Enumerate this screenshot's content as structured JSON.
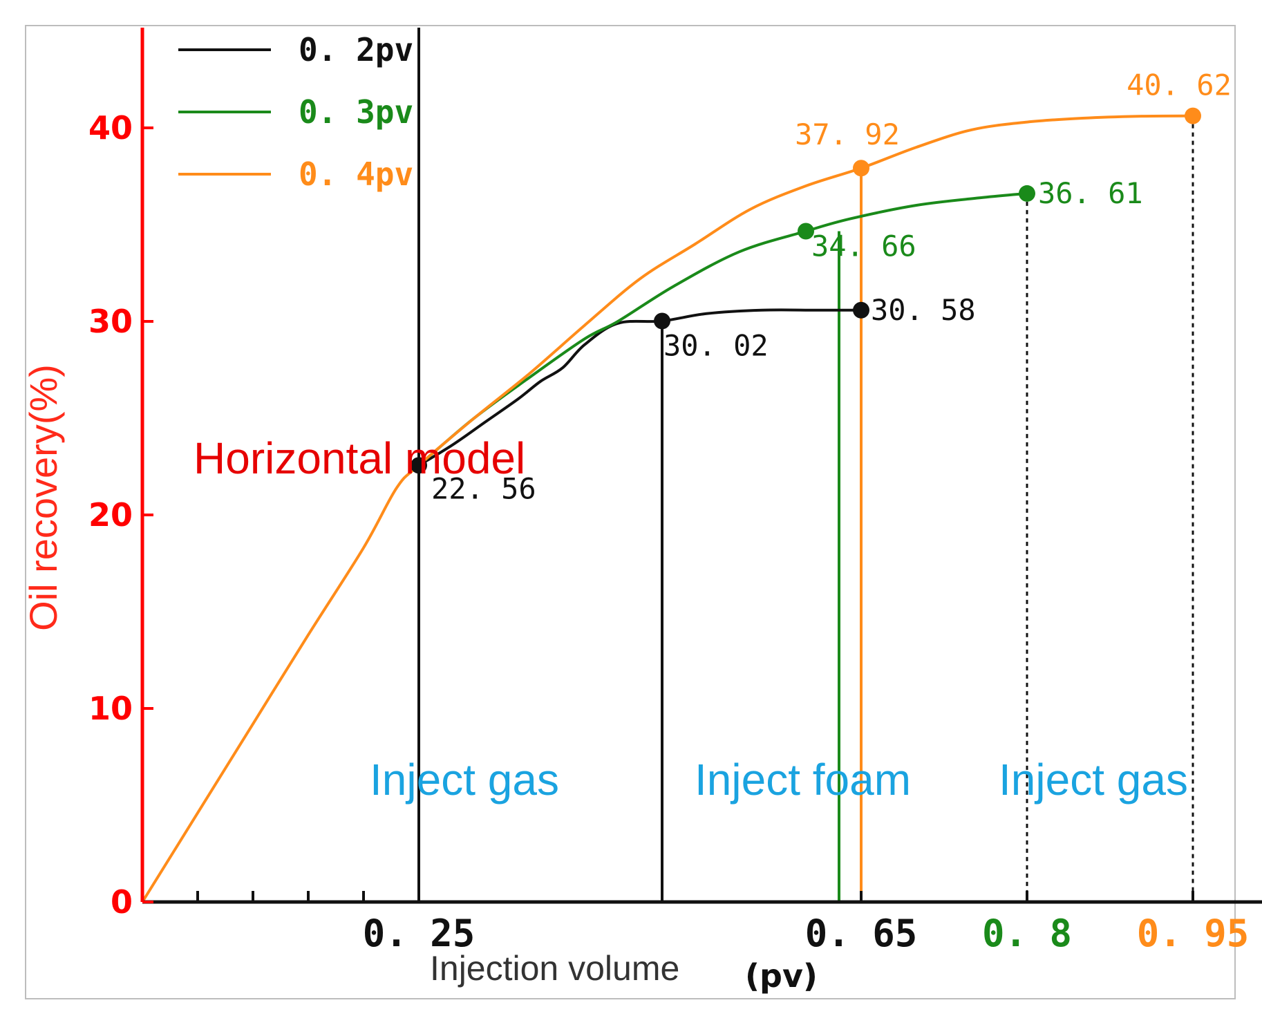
{
  "chart_data": {
    "type": "line",
    "title": "",
    "xlabel": "Injection volume",
    "xunit": "(pv)",
    "ylabel": "Oil recovery(%)",
    "ylim": [
      0,
      45
    ],
    "xlim": [
      0,
      1.04
    ],
    "yticks": [
      "0",
      "10",
      "20",
      "30",
      "40"
    ],
    "yticks_values": [
      0,
      10,
      20,
      30,
      40
    ],
    "xticks_minor": [
      0.05,
      0.1,
      0.15,
      0.2
    ],
    "x_tick_labels": [
      {
        "x": 0.25,
        "label": "0. 25",
        "color": "#111111"
      },
      {
        "x": 0.65,
        "label": "0. 65",
        "color": "#111111"
      },
      {
        "x": 0.8,
        "label": "0. 8",
        "color": "#1a8a1a"
      },
      {
        "x": 0.95,
        "label": "0. 95",
        "color": "#ff8c1a"
      }
    ],
    "model_label": "Horizontal model",
    "regions": [
      "Inject gas",
      "Inject foam",
      "Inject gas"
    ],
    "series": [
      {
        "name": "0. 2pv",
        "color": "#111111",
        "x": [
          0.25,
          0.28,
          0.31,
          0.34,
          0.36,
          0.38,
          0.4,
          0.43,
          0.47,
          0.51,
          0.56,
          0.61,
          0.65
        ],
        "y": [
          22.56,
          23.6,
          24.8,
          26.0,
          26.9,
          27.6,
          28.8,
          29.9,
          30.02,
          30.4,
          30.58,
          30.58,
          30.58
        ]
      },
      {
        "name": "0. 3pv",
        "color": "#1a8a1a",
        "x": [
          0.25,
          0.3,
          0.35,
          0.4,
          0.43,
          0.48,
          0.54,
          0.6,
          0.64,
          0.7,
          0.76,
          0.8
        ],
        "y": [
          22.56,
          25.0,
          27.1,
          29.1,
          30.0,
          31.8,
          33.6,
          34.66,
          35.3,
          36.0,
          36.4,
          36.61
        ]
      },
      {
        "name": "0. 4pv",
        "color": "#ff8c1a",
        "x": [
          0,
          0.05,
          0.1,
          0.15,
          0.2,
          0.23,
          0.25,
          0.3,
          0.35,
          0.4,
          0.45,
          0.5,
          0.55,
          0.6,
          0.65,
          0.7,
          0.75,
          0.8,
          0.85,
          0.9,
          0.95
        ],
        "y": [
          0,
          4.6,
          9.2,
          13.8,
          18.3,
          21.4,
          22.56,
          25.0,
          27.3,
          29.8,
          32.2,
          34.0,
          35.8,
          37.0,
          37.92,
          39.0,
          39.9,
          40.3,
          40.5,
          40.6,
          40.62
        ]
      }
    ],
    "annotations": [
      {
        "x": 0.25,
        "y": 22.56,
        "label": "22. 56",
        "color": "#111111"
      },
      {
        "x": 0.47,
        "y": 30.02,
        "label": "30. 02",
        "color": "#111111"
      },
      {
        "x": 0.65,
        "y": 30.58,
        "label": "30. 58",
        "color": "#111111"
      },
      {
        "x": 0.6,
        "y": 34.66,
        "label": "34. 66",
        "color": "#1a8a1a"
      },
      {
        "x": 0.8,
        "y": 36.61,
        "label": "36. 61",
        "color": "#1a8a1a"
      },
      {
        "x": 0.65,
        "y": 37.92,
        "label": "37. 92",
        "color": "#ff8c1a"
      },
      {
        "x": 0.95,
        "y": 40.62,
        "label": "40. 62",
        "color": "#ff8c1a"
      }
    ],
    "vertical_lines": [
      {
        "x": 0.25,
        "color": "#111111",
        "style": "solid"
      },
      {
        "x": 0.47,
        "color": "#111111",
        "style": "solid"
      },
      {
        "x": 0.63,
        "color": "#1a8a1a",
        "style": "solid"
      },
      {
        "x": 0.65,
        "color": "#ff8c1a",
        "style": "solid"
      },
      {
        "x": 0.8,
        "color": "#111111",
        "style": "dashed"
      },
      {
        "x": 0.95,
        "color": "#111111",
        "style": "dashed"
      }
    ],
    "colors": {
      "y_axis": "#ff0000",
      "x_axis": "#111111",
      "region_text": "#1aa3e0",
      "model_text": "#e60000",
      "ylabel_text": "#ff2a1a"
    }
  }
}
